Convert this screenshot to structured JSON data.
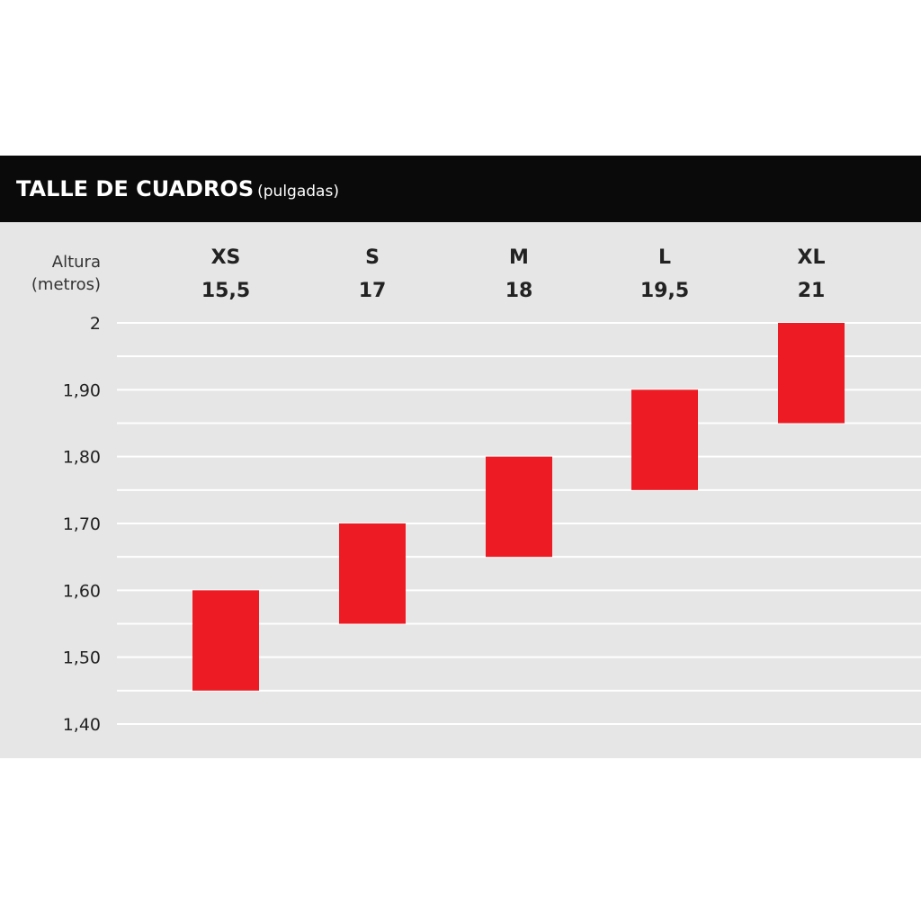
{
  "header": {
    "title": "TALLE DE CUADROS",
    "unit": "(pulgadas)"
  },
  "colors": {
    "header_bg": "#0a0a0a",
    "panel_bg": "#e6e6e6",
    "bar": "#ed1c24",
    "grid": "#ffffff"
  },
  "chart_data": {
    "type": "bar",
    "orientation": "floating-range",
    "ylabel": [
      "Altura",
      "(metros)"
    ],
    "ylim": [
      1.4,
      2.0
    ],
    "yticks": [
      {
        "value": 2.0,
        "label": "2"
      },
      {
        "value": 1.9,
        "label": "1,90"
      },
      {
        "value": 1.8,
        "label": "1,80"
      },
      {
        "value": 1.7,
        "label": "1,70"
      },
      {
        "value": 1.6,
        "label": "1,60"
      },
      {
        "value": 1.5,
        "label": "1,50"
      },
      {
        "value": 1.4,
        "label": "1,40"
      }
    ],
    "minor_grid_step": 0.05,
    "grid": true,
    "categories": [
      {
        "size": "XS",
        "frame": "15,5",
        "low": 1.45,
        "high": 1.6
      },
      {
        "size": "S",
        "frame": "17",
        "low": 1.55,
        "high": 1.7
      },
      {
        "size": "M",
        "frame": "18",
        "low": 1.65,
        "high": 1.8
      },
      {
        "size": "L",
        "frame": "19,5",
        "low": 1.75,
        "high": 1.9
      },
      {
        "size": "XL",
        "frame": "21",
        "low": 1.85,
        "high": 2.0
      }
    ]
  }
}
